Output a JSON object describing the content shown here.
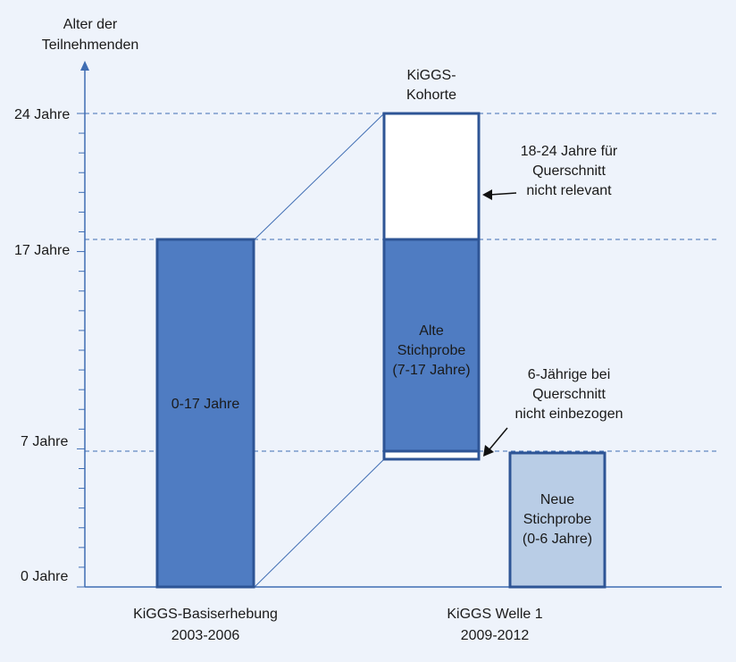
{
  "y_axis": {
    "title_line1": "Alter der",
    "title_line2": "Teilnehmenden",
    "ticks": [
      "24 Jahre",
      "17 Jahre",
      "7 Jahre",
      "0 Jahre"
    ]
  },
  "groups": {
    "basis_line1": "KiGGS-Basiserhebung",
    "basis_line2": "2003-2006",
    "welle_line1": "KiGGS Welle 1",
    "welle_line2": "2009-2012"
  },
  "bars": {
    "basis_label": "0-17 Jahre",
    "kohorte_line1": "KiGGS-",
    "kohorte_line2": "Kohorte",
    "alte_line1": "Alte",
    "alte_line2": "Stichprobe",
    "alte_line3": "(7-17 Jahre)",
    "neue_line1": "Neue",
    "neue_line2": "Stichprobe",
    "neue_line3": "(0-6 Jahre)"
  },
  "annotations": {
    "top_line1": "18-24 Jahre für",
    "top_line2": "Querschnitt",
    "top_line3": "nicht relevant",
    "mid_line1": "6-Jährige bei",
    "mid_line2": "Querschnitt",
    "mid_line3": "nicht einbezogen"
  },
  "colors": {
    "background": "#eef3fb",
    "axis": "#3f6db3",
    "bar_fill": "#4f7cc2",
    "bar_stroke": "#2e5596",
    "light_fill": "#b9cde6",
    "grid_dash": "#3f6db3"
  }
}
